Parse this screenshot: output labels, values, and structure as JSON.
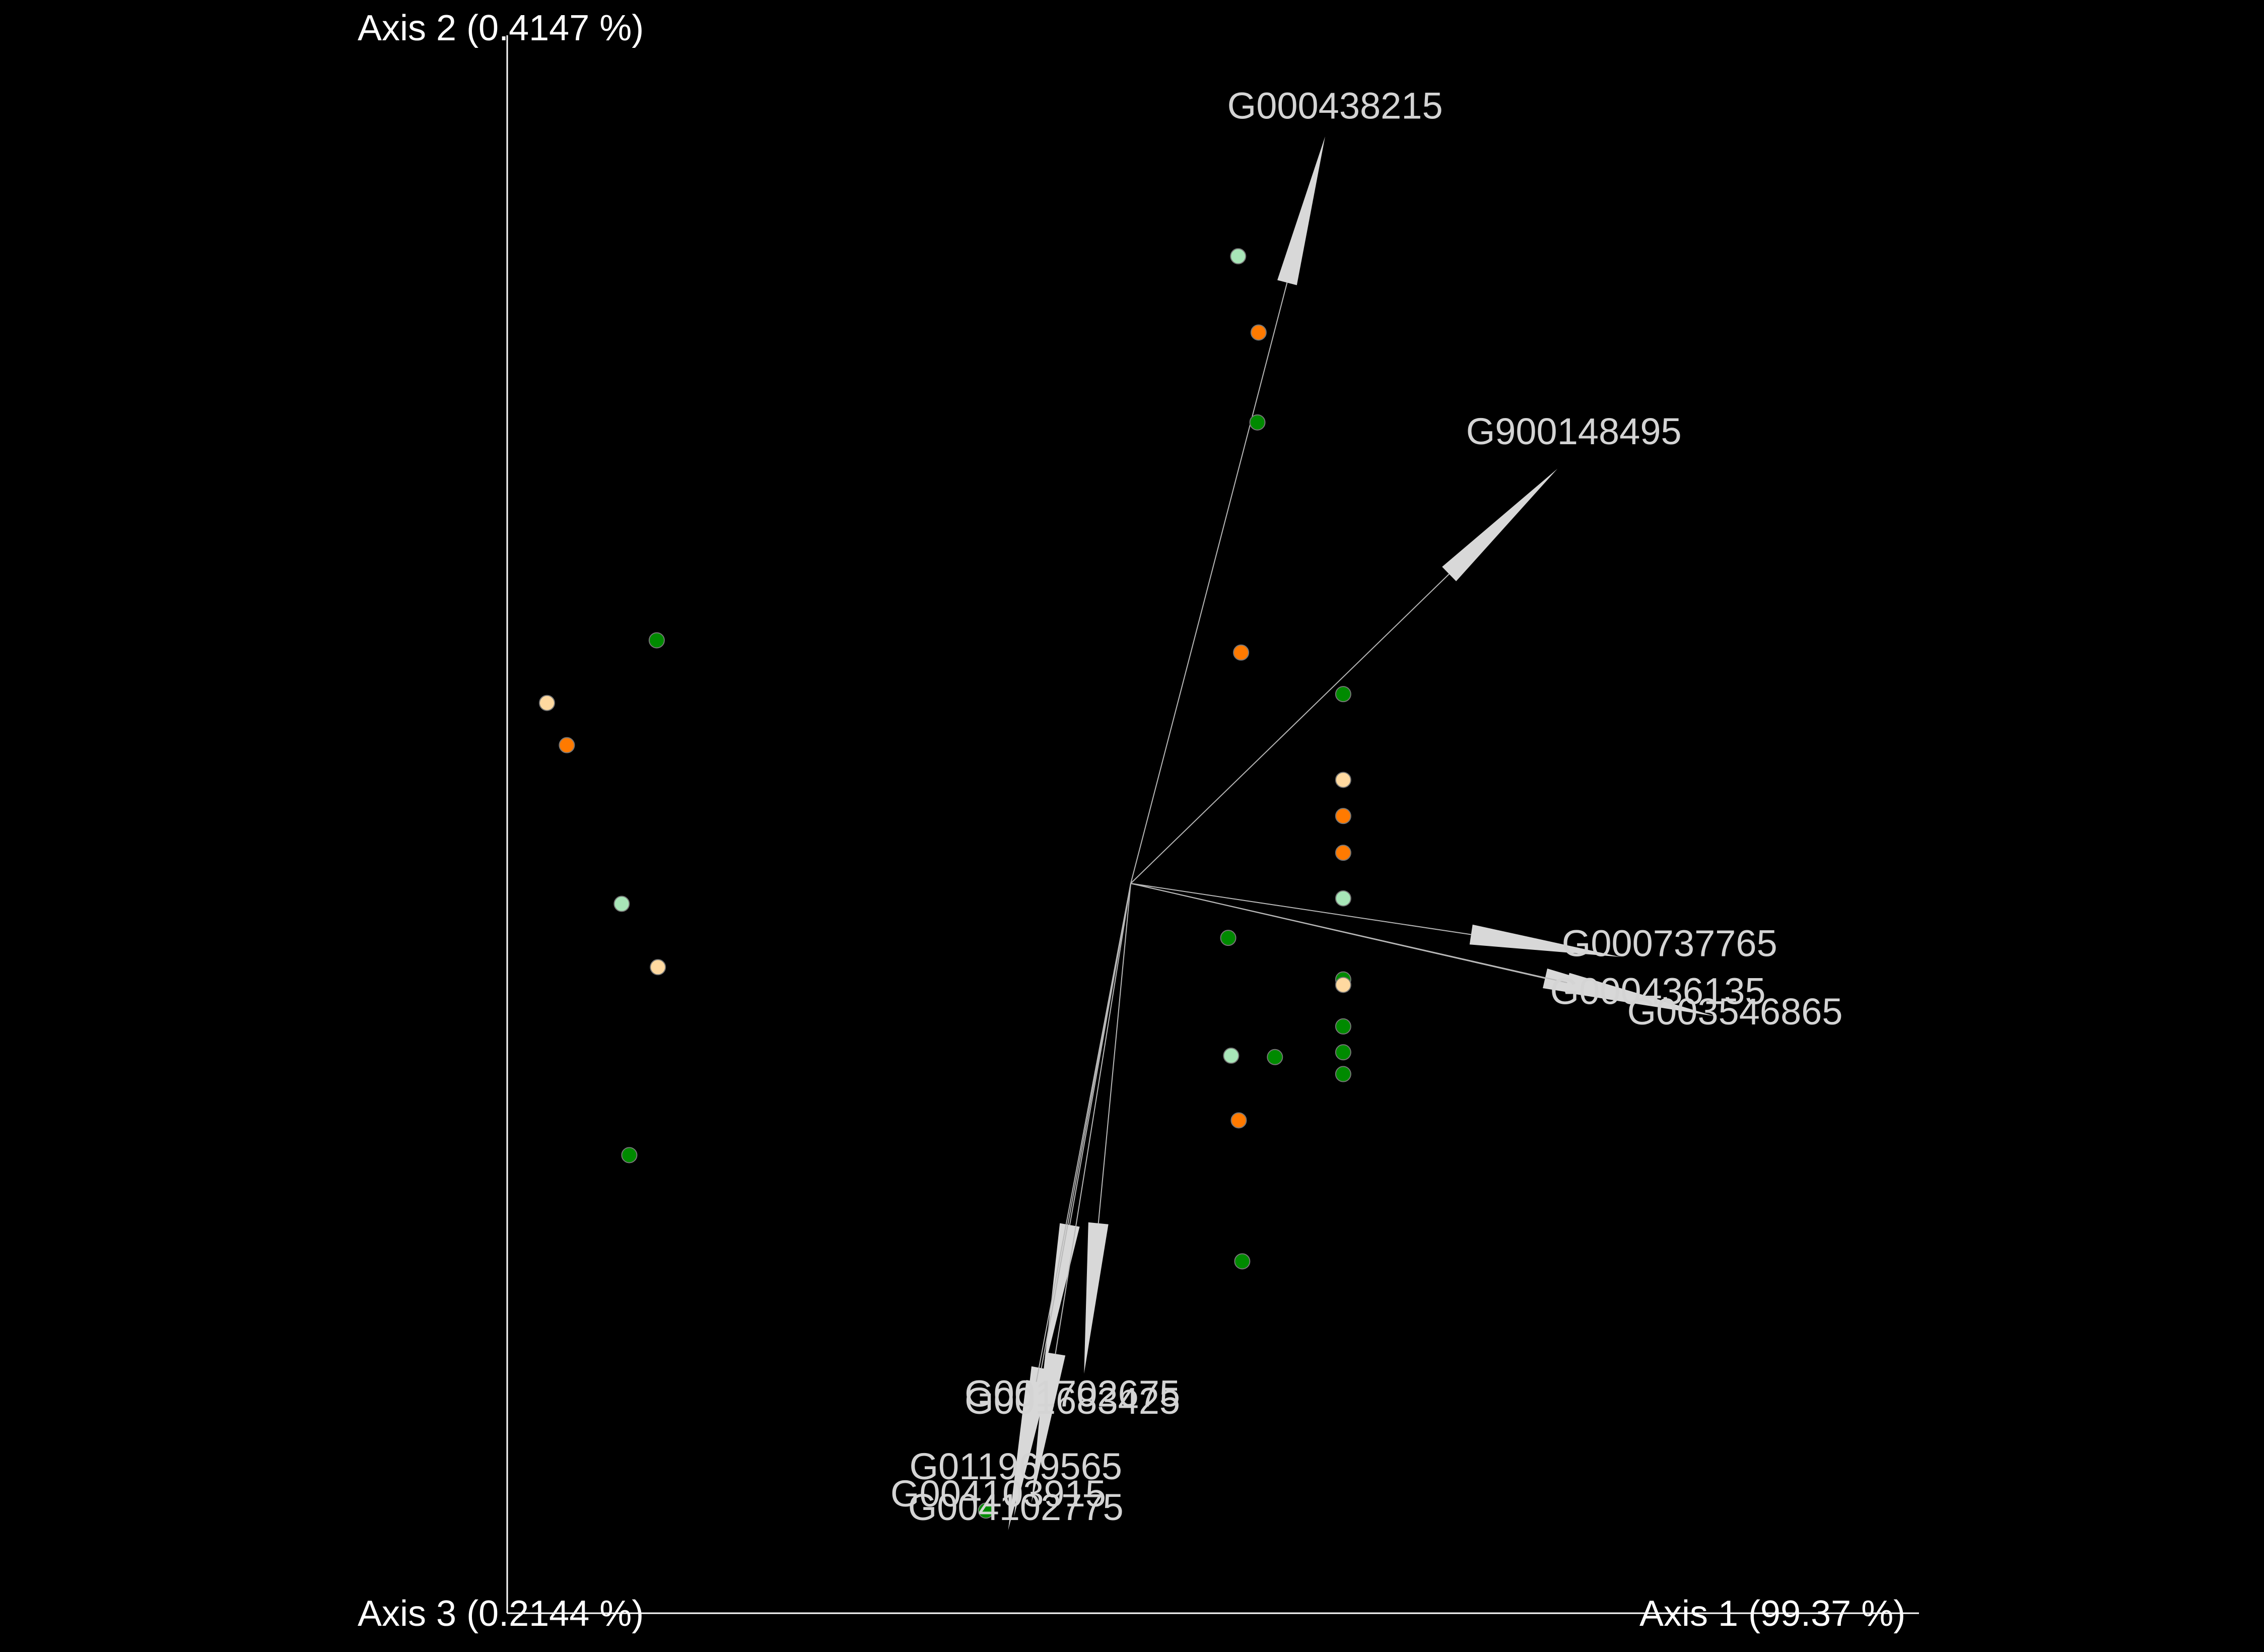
{
  "chart_data": {
    "type": "scatter",
    "title": "",
    "axes": {
      "axis1_label": "Axis 1 (99.37 %)",
      "axis2_label": "Axis 2 (0.4147 %)",
      "axis3_label": "Axis 3 (0.2144 %)"
    },
    "background": "#000000",
    "grid": false,
    "legend": "none",
    "xlim": [
      -1,
      1
    ],
    "ylim": [
      -1,
      1
    ],
    "origin": [
      0,
      0
    ],
    "points": [
      {
        "x": 0.184,
        "y": 0.921,
        "color": "#a8e6b8"
      },
      {
        "x": 0.219,
        "y": 0.809,
        "color": "#ff7a00"
      },
      {
        "x": 0.217,
        "y": 0.677,
        "color": "#008a00"
      },
      {
        "x": 0.189,
        "y": 0.339,
        "color": "#ff7a00"
      },
      {
        "x": 0.364,
        "y": 0.278,
        "color": "#008a00"
      },
      {
        "x": 0.364,
        "y": 0.152,
        "color": "#ffd9a0"
      },
      {
        "x": 0.364,
        "y": 0.099,
        "color": "#ff7a00"
      },
      {
        "x": 0.364,
        "y": 0.045,
        "color": "#ff7a00"
      },
      {
        "x": 0.364,
        "y": -0.022,
        "color": "#a8e6b8"
      },
      {
        "x": 0.167,
        "y": -0.08,
        "color": "#008a00"
      },
      {
        "x": 0.364,
        "y": -0.141,
        "color": "#008a00"
      },
      {
        "x": 0.364,
        "y": -0.149,
        "color": "#ffd9a0"
      },
      {
        "x": 0.364,
        "y": -0.21,
        "color": "#008a00"
      },
      {
        "x": 0.364,
        "y": -0.248,
        "color": "#008a00"
      },
      {
        "x": 0.364,
        "y": -0.28,
        "color": "#008a00"
      },
      {
        "x": 0.172,
        "y": -0.253,
        "color": "#a8e6b8"
      },
      {
        "x": 0.247,
        "y": -0.255,
        "color": "#008a00"
      },
      {
        "x": 0.185,
        "y": -0.348,
        "color": "#ff7a00"
      },
      {
        "x": 0.191,
        "y": -0.555,
        "color": "#008a00"
      },
      {
        "x": -0.248,
        "y": -0.921,
        "color": "#008a00"
      },
      {
        "x": -0.812,
        "y": 0.357,
        "color": "#008a00"
      },
      {
        "x": -1.0,
        "y": 0.265,
        "color": "#ffd9a0"
      },
      {
        "x": -0.966,
        "y": 0.203,
        "color": "#ff7a00"
      },
      {
        "x": -0.872,
        "y": -0.03,
        "color": "#a8e6b8"
      },
      {
        "x": -0.81,
        "y": -0.123,
        "color": "#ffd9a0"
      },
      {
        "x": -0.859,
        "y": -0.399,
        "color": "#008a00"
      }
    ],
    "vectors": [
      {
        "label": "G000438215",
        "x": 0.333,
        "y": 1.097
      },
      {
        "label": "G900148495",
        "x": 0.731,
        "y": 0.609
      },
      {
        "label": "G000737765",
        "x": 0.839,
        "y": -0.108
      },
      {
        "label": "G000436135",
        "x": 0.962,
        "y": -0.189
      },
      {
        "label": "G003546865",
        "x": 1.0,
        "y": -0.195
      },
      {
        "label": "G001702675",
        "x": -0.08,
        "y": -0.72
      },
      {
        "label": "G001683425",
        "x": -0.15,
        "y": -0.72
      },
      {
        "label": "G011969565",
        "x": -0.17,
        "y": -0.91
      },
      {
        "label": "G004103915",
        "x": -0.2,
        "y": -0.93
      },
      {
        "label": "G004102775",
        "x": -0.21,
        "y": -0.95
      }
    ],
    "label_text": [
      {
        "text": "G000438215",
        "lx": 0.35,
        "ly": 1.123,
        "anchor": "middle"
      },
      {
        "text": "G900148495",
        "lx": 0.759,
        "ly": 0.645,
        "anchor": "middle"
      },
      {
        "text": "G000737765",
        "lx": 0.923,
        "ly": -0.107,
        "anchor": "middle"
      },
      {
        "text": "G000436135",
        "lx": 0.903,
        "ly": -0.177,
        "anchor": "middle"
      },
      {
        "text": "G003546865",
        "lx": 1.035,
        "ly": -0.207,
        "anchor": "middle"
      },
      {
        "text": "G001702675",
        "lx": -0.1,
        "ly": -0.768,
        "anchor": "middle"
      },
      {
        "text": "G001683425",
        "lx": -0.1,
        "ly": -0.779,
        "anchor": "middle"
      },
      {
        "text": "G011969565",
        "lx": -0.197,
        "ly": -0.875,
        "anchor": "middle"
      },
      {
        "text": "G004103915",
        "lx": -0.227,
        "ly": -0.915,
        "anchor": "middle"
      },
      {
        "text": "G004102775",
        "lx": -0.197,
        "ly": -0.935,
        "anchor": "middle"
      }
    ]
  }
}
